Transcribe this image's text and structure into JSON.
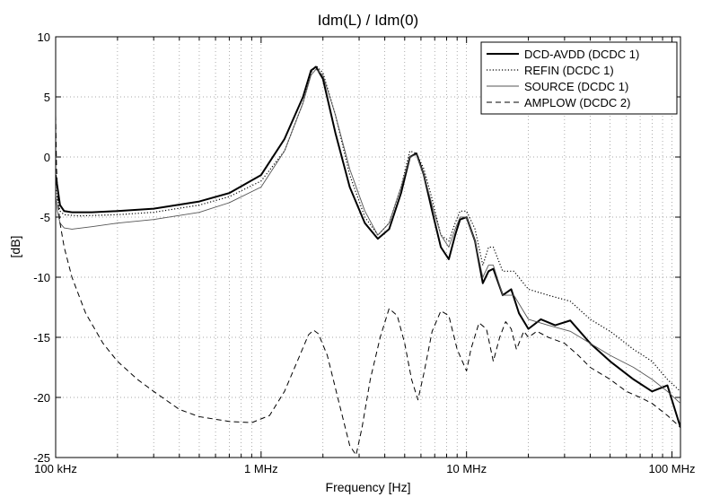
{
  "chart_data": {
    "type": "line",
    "title": "Idm(L) / Idm(0)",
    "xlabel": "Frequency [Hz]",
    "ylabel": "[dB]",
    "xscale": "log",
    "xlim": [
      100000,
      110000000
    ],
    "ylim": [
      -25,
      10
    ],
    "grid": true,
    "legend_position": "top-right",
    "x_ticks": [
      {
        "value": 100000,
        "label": "100 kHz"
      },
      {
        "value": 1000000,
        "label": "1 MHz"
      },
      {
        "value": 10000000,
        "label": "10 MHz"
      },
      {
        "value": 100000000,
        "label": "100 MHz"
      }
    ],
    "y_ticks": [
      {
        "value": 10,
        "label": "10"
      },
      {
        "value": 5,
        "label": "5"
      },
      {
        "value": 0,
        "label": "0"
      },
      {
        "value": -5,
        "label": "-5"
      },
      {
        "value": -10,
        "label": "-10"
      },
      {
        "value": -15,
        "label": "-15"
      },
      {
        "value": -20,
        "label": "-20"
      },
      {
        "value": -25,
        "label": "-25"
      }
    ],
    "series": [
      {
        "name": "DCD-AVDD (DCDC 1)",
        "style": "solid-thick",
        "color": "#000000",
        "x": [
          100000,
          102000,
          105000,
          110000,
          120000,
          150000,
          200000,
          300000,
          500000,
          700000,
          1000000,
          1300000,
          1600000,
          1750000,
          1850000,
          2000000,
          2300000,
          2700000,
          3200000,
          3700000,
          4200000,
          4800000,
          5300000,
          5700000,
          6200000,
          6800000,
          7500000,
          8200000,
          8800000,
          9300000,
          10000000,
          11000000,
          12000000,
          12800000,
          13500000,
          15000000,
          16500000,
          18000000,
          20000000,
          23000000,
          27000000,
          32000000,
          40000000,
          50000000,
          65000000,
          80000000,
          95000000,
          110000000
        ],
        "y": [
          -1.5,
          -2.5,
          -4.0,
          -4.5,
          -4.6,
          -4.6,
          -4.5,
          -4.3,
          -3.7,
          -3.0,
          -1.5,
          1.5,
          5.0,
          7.2,
          7.5,
          6.5,
          2.0,
          -2.5,
          -5.5,
          -6.8,
          -6.0,
          -3.0,
          0.0,
          0.3,
          -1.5,
          -4.5,
          -7.5,
          -8.5,
          -6.5,
          -5.2,
          -5.0,
          -7.0,
          -10.5,
          -9.5,
          -9.3,
          -11.5,
          -11.0,
          -13.0,
          -14.3,
          -13.5,
          -14.0,
          -13.6,
          -15.5,
          -17.0,
          -18.5,
          -19.5,
          -19.0,
          -22.5
        ]
      },
      {
        "name": "REFIN (DCDC 1)",
        "style": "dotted",
        "color": "#000000",
        "x": [
          100000,
          102000,
          105000,
          110000,
          130000,
          200000,
          300000,
          500000,
          700000,
          1000000,
          1300000,
          1600000,
          1750000,
          1850000,
          2000000,
          2300000,
          2700000,
          3200000,
          3700000,
          4200000,
          4800000,
          5300000,
          5700000,
          6200000,
          6800000,
          7500000,
          8200000,
          8800000,
          9300000,
          10000000,
          11000000,
          12000000,
          12800000,
          13500000,
          15000000,
          17000000,
          20000000,
          25000000,
          32000000,
          40000000,
          50000000,
          65000000,
          80000000,
          95000000,
          110000000
        ],
        "y": [
          -2.5,
          -3.5,
          -4.5,
          -4.8,
          -4.9,
          -4.8,
          -4.6,
          -4.0,
          -3.3,
          -2.0,
          0.5,
          4.5,
          7.0,
          7.6,
          7.0,
          3.5,
          -1.5,
          -5.0,
          -6.5,
          -5.5,
          -2.5,
          0.5,
          0.3,
          -1.0,
          -3.5,
          -6.5,
          -7.0,
          -5.5,
          -4.5,
          -4.5,
          -6.0,
          -9.0,
          -7.5,
          -7.5,
          -9.5,
          -9.5,
          -11.0,
          -11.5,
          -12.0,
          -13.5,
          -14.5,
          -16.0,
          -17.0,
          -18.5,
          -19.5
        ]
      },
      {
        "name": "SOURCE (DCDC 1)",
        "style": "solid-thin",
        "color": "#555555",
        "x": [
          100000,
          102000,
          105000,
          110000,
          120000,
          150000,
          200000,
          300000,
          500000,
          700000,
          1000000,
          1300000,
          1600000,
          1750000,
          1850000,
          2000000,
          2300000,
          2700000,
          3200000,
          3700000,
          4200000,
          4800000,
          5300000,
          5700000,
          6200000,
          6800000,
          7500000,
          8200000,
          8800000,
          9300000,
          10000000,
          11000000,
          12000000,
          12800000,
          13500000,
          15000000,
          17000000,
          20000000,
          25000000,
          32000000,
          40000000,
          50000000,
          65000000,
          80000000,
          95000000,
          110000000
        ],
        "y": [
          -3.0,
          -4.5,
          -5.5,
          -5.9,
          -6.0,
          -5.8,
          -5.5,
          -5.2,
          -4.6,
          -3.8,
          -2.5,
          0.5,
          4.5,
          6.8,
          7.3,
          6.8,
          3.5,
          -1.0,
          -4.5,
          -6.5,
          -5.5,
          -2.5,
          0.0,
          0.2,
          -1.5,
          -4.0,
          -6.5,
          -7.5,
          -6.0,
          -5.0,
          -5.0,
          -7.0,
          -10.0,
          -9.0,
          -9.0,
          -11.5,
          -11.5,
          -13.5,
          -14.0,
          -14.5,
          -15.5,
          -16.5,
          -17.5,
          -18.5,
          -19.5,
          -20.5
        ]
      },
      {
        "name": "AMPLOW (DCDC 2)",
        "style": "dashed",
        "color": "#000000",
        "x": [
          100000,
          101000,
          103000,
          105000,
          110000,
          120000,
          140000,
          170000,
          200000,
          250000,
          300000,
          400000,
          500000,
          700000,
          900000,
          1100000,
          1300000,
          1500000,
          1700000,
          1800000,
          1900000,
          2100000,
          2400000,
          2700000,
          2900000,
          3100000,
          3400000,
          3800000,
          4200000,
          4600000,
          5000000,
          5400000,
          5800000,
          6200000,
          6800000,
          7500000,
          8200000,
          9000000,
          10000000,
          10500000,
          11500000,
          12500000,
          13500000,
          14500000,
          15500000,
          16500000,
          17500000,
          19000000,
          20000000,
          22000000,
          25000000,
          30000000,
          35000000,
          40000000,
          50000000,
          60000000,
          70000000,
          80000000,
          95000000,
          110000000
        ],
        "y": [
          3.5,
          -1.0,
          -4.0,
          -5.5,
          -7.5,
          -10.0,
          -13.0,
          -15.5,
          -17.0,
          -18.5,
          -19.5,
          -21.0,
          -21.6,
          -22.0,
          -22.1,
          -21.5,
          -19.5,
          -17.0,
          -14.8,
          -14.4,
          -14.7,
          -16.5,
          -20.5,
          -24.0,
          -24.8,
          -22.5,
          -18.5,
          -15.0,
          -12.6,
          -13.2,
          -15.5,
          -18.5,
          -20.2,
          -18.0,
          -14.5,
          -12.8,
          -13.2,
          -16.0,
          -17.8,
          -16.0,
          -13.8,
          -14.3,
          -17.0,
          -15.0,
          -13.7,
          -14.3,
          -16.0,
          -14.5,
          -15.0,
          -14.5,
          -15.0,
          -15.5,
          -16.5,
          -17.5,
          -18.5,
          -19.5,
          -20.0,
          -20.5,
          -21.5,
          -22.5
        ]
      }
    ]
  }
}
